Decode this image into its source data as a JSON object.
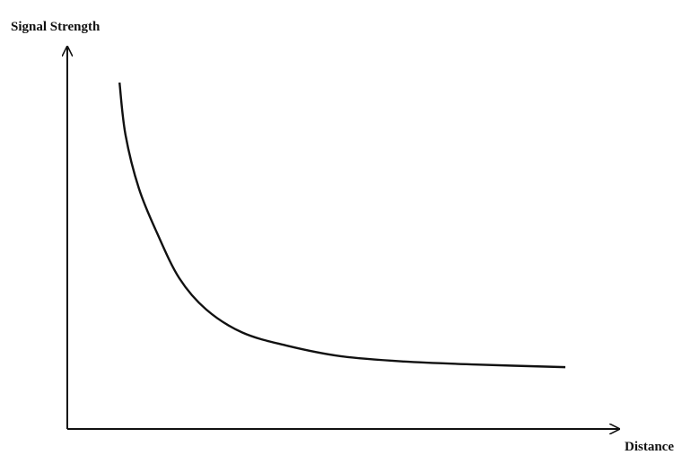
{
  "chart_data": {
    "type": "line",
    "y_label": "Signal Strength",
    "x_label": "Distance",
    "x": [
      9.7,
      10.8,
      13.3,
      16.7,
      20.8,
      25.8,
      32.5,
      40.8,
      50.8,
      62.5,
      75.8,
      92.5
    ],
    "series": [
      {
        "color": "#111111",
        "values": [
          91.9,
          78.1,
          63.8,
          51.9,
          40.0,
          31.7,
          25.6,
          22.1,
          19.3,
          17.9,
          17.1,
          16.4
        ]
      }
    ],
    "xlim": [
      0,
      100
    ],
    "ylim": [
      0,
      100
    ],
    "grid": false
  }
}
